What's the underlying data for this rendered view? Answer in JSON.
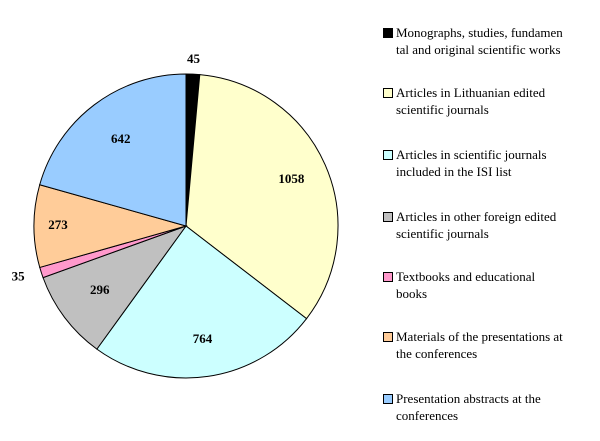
{
  "chart_data": {
    "type": "pie",
    "title": "",
    "legend_position": "right",
    "categories": [
      "Monographs, studies, fundamen\ntal and original scientific works",
      "Articles in Lithuanian edited\nscientific journals",
      "Articles in scientific journals\nincluded in the ISI list",
      "Articles in other foreign edited\nscientific journals",
      "Textbooks and educational\nbooks",
      "Materials of the presentations at\nthe conferences",
      "Presentation abstracts at the\nconferences"
    ],
    "values": [
      45,
      1058,
      764,
      296,
      35,
      273,
      642
    ],
    "labels": [
      "45",
      "1058",
      "764",
      "296",
      "35",
      "273",
      "642"
    ],
    "colors": [
      "#000000",
      "#ffffcc",
      "#ccffff",
      "#c0c0c0",
      "#ff99cc",
      "#ffcc99",
      "#99ccff"
    ]
  }
}
